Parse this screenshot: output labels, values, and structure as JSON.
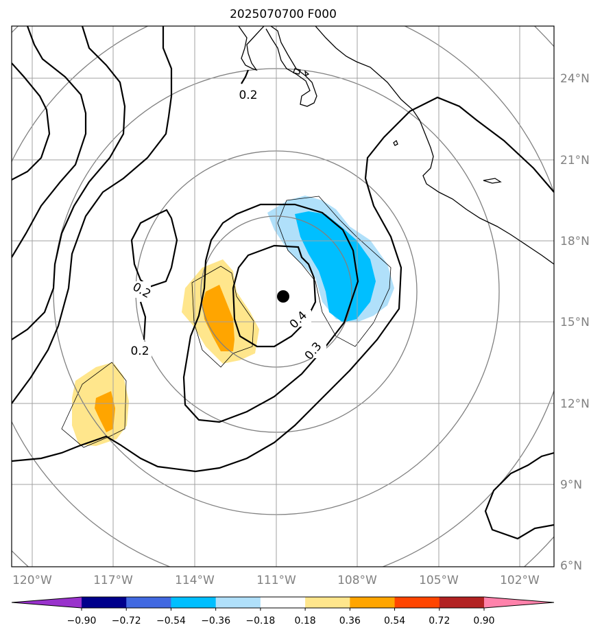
{
  "title": "2025070700 F000",
  "map": {
    "projection": "azimuthal",
    "center_marker": "storm-center-dot",
    "lon_ticks": [
      "120°W",
      "117°W",
      "114°W",
      "111°W",
      "108°W",
      "105°W",
      "102°W"
    ],
    "lat_ticks": [
      "24°N",
      "21°N",
      "18°N",
      "15°N",
      "12°N",
      "9°N",
      "6°N"
    ],
    "contour_labels": [
      "0.2",
      "0.2",
      "0.2",
      "0.4",
      "0.3"
    ],
    "grid": true,
    "range_rings": true,
    "colors": {
      "coastline": "#000000",
      "grid": "#a0a0a0",
      "range_ring": "#808080",
      "tick_text": "#808080"
    }
  },
  "colorbar": {
    "labels": [
      "−0.90",
      "−0.72",
      "−0.54",
      "−0.36",
      "−0.18",
      "0.18",
      "0.36",
      "0.54",
      "0.72",
      "0.90"
    ],
    "colors": [
      "#9932cc",
      "#00008b",
      "#4169e1",
      "#00bfff",
      "#b0e0fa",
      "#ffffff",
      "#ffe68c",
      "#ffa500",
      "#ff4500",
      "#b22222",
      "#ff82ab"
    ],
    "extend": "both"
  }
}
